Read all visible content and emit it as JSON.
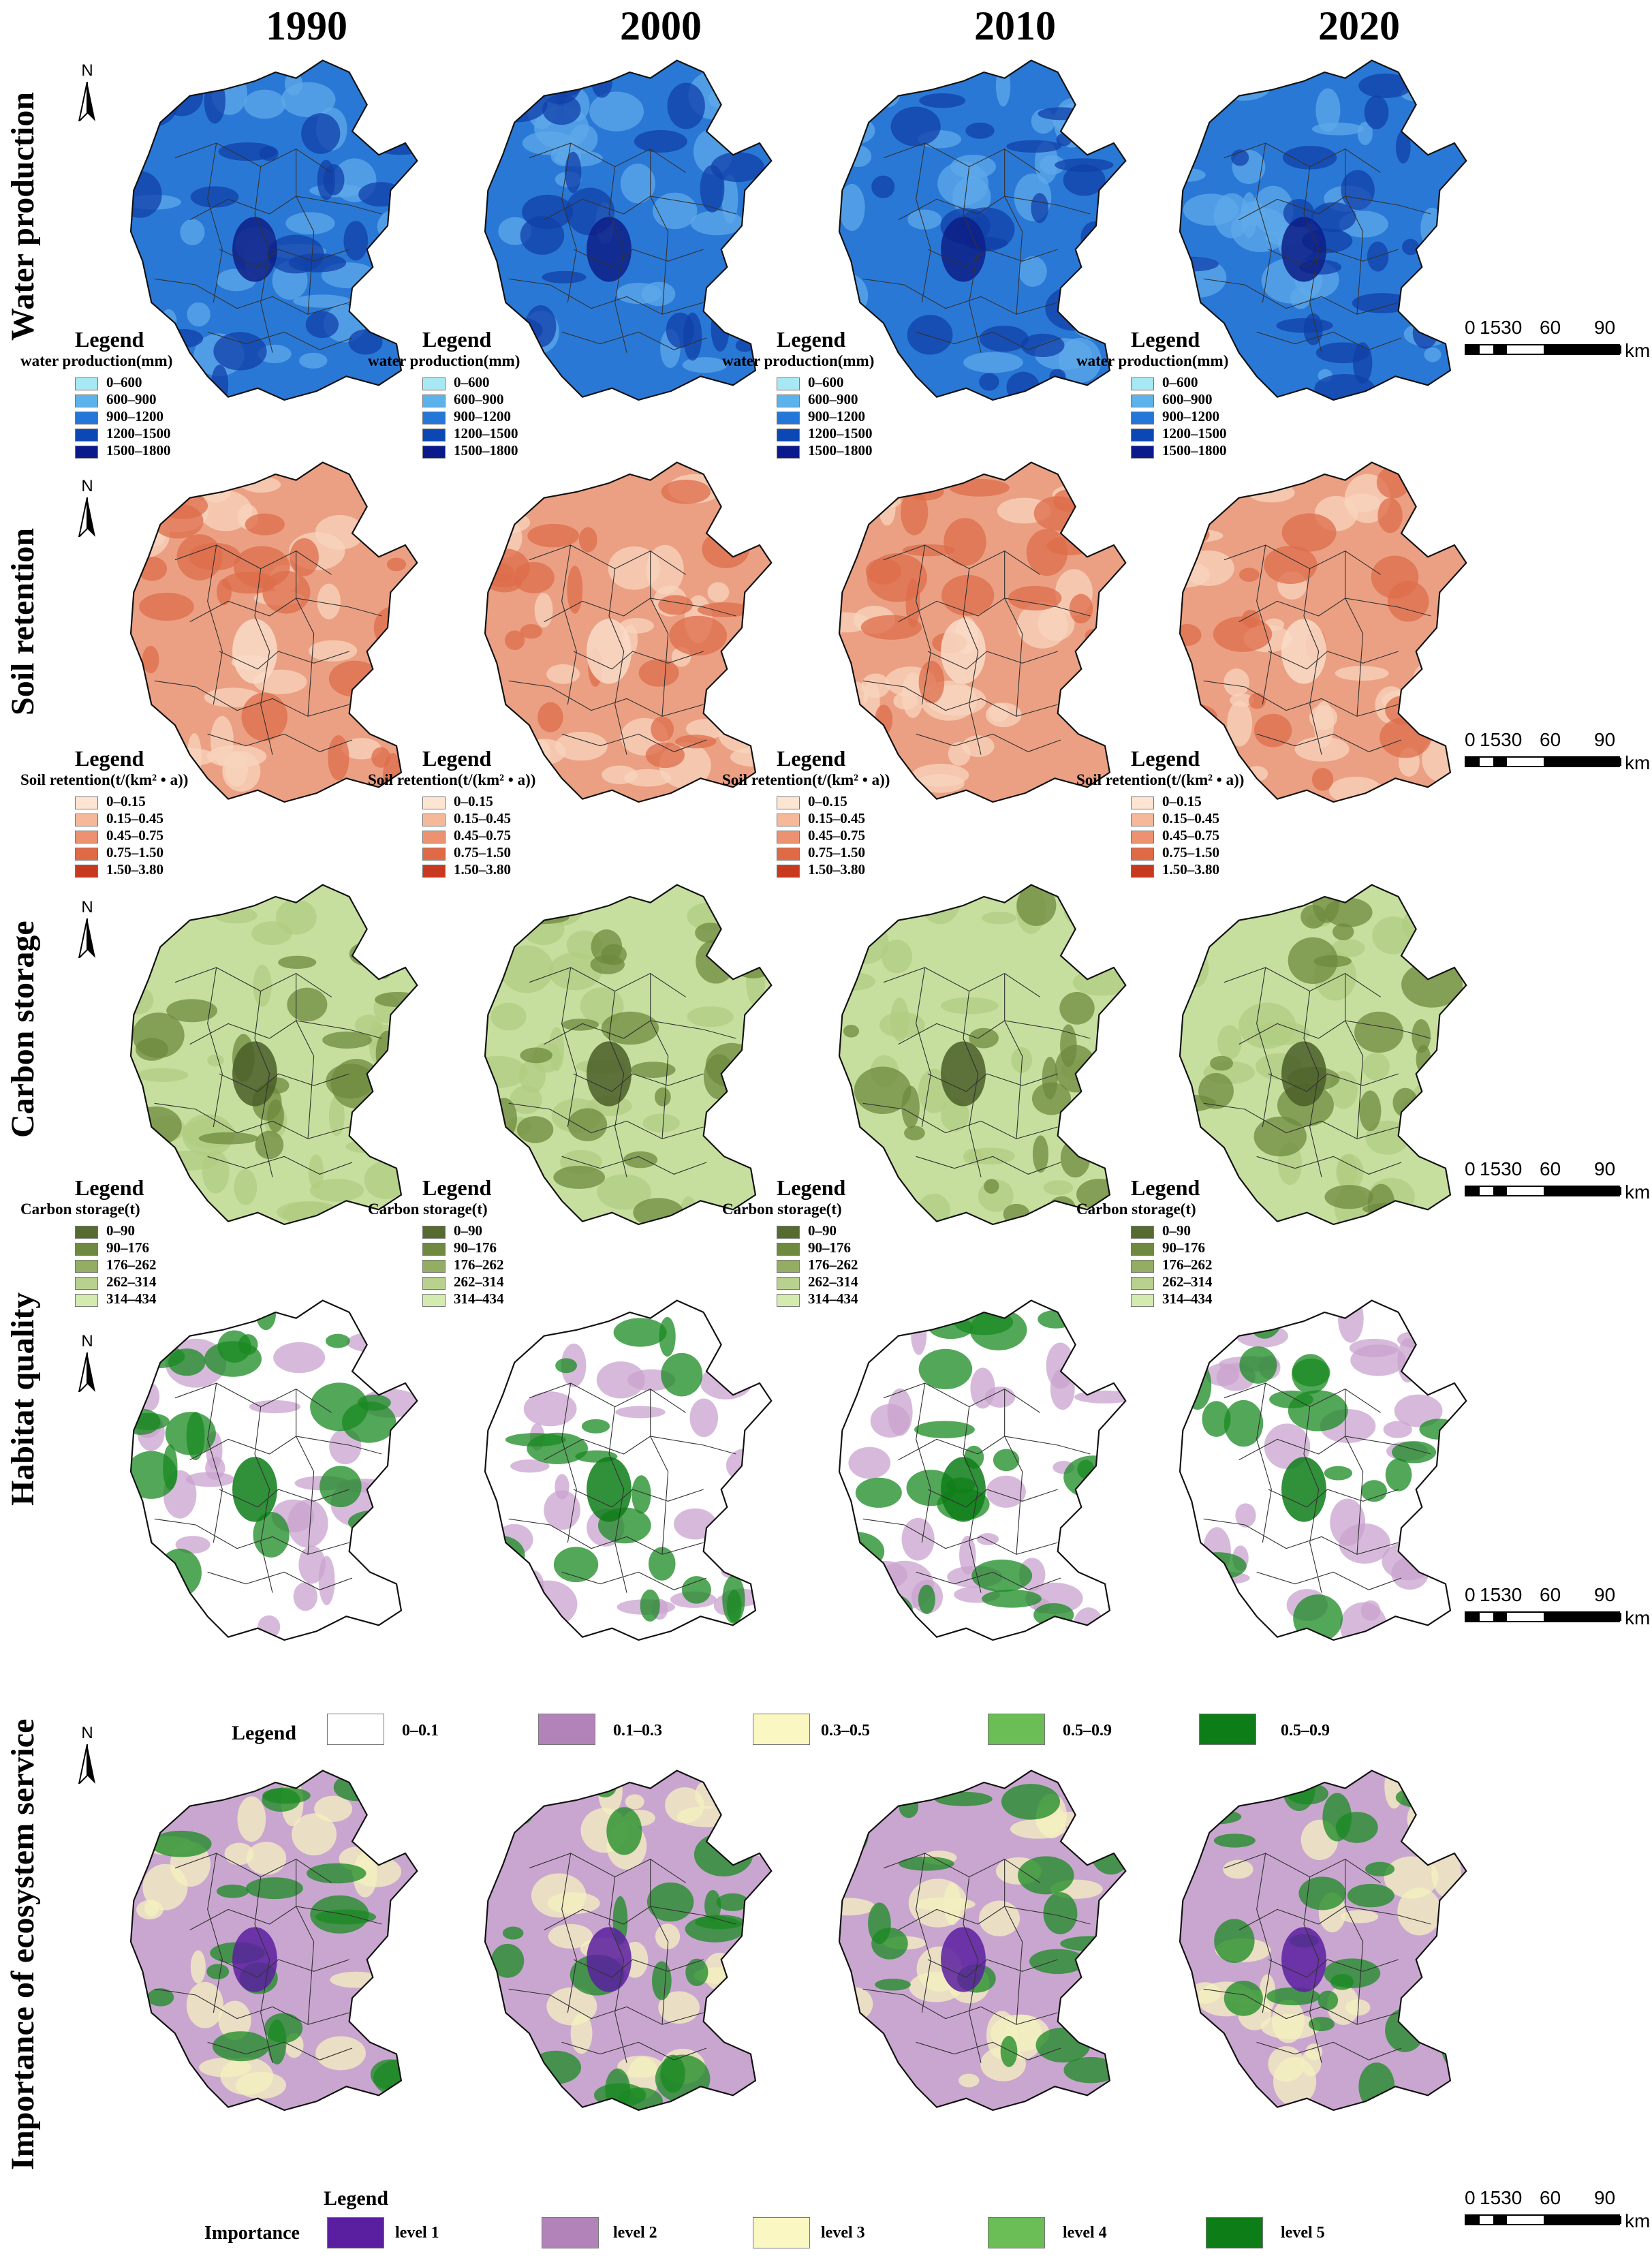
{
  "years": [
    "1990",
    "2000",
    "2010",
    "2020"
  ],
  "north_label": "N",
  "scalebar": {
    "labels": [
      "0",
      "1530",
      "60",
      "90"
    ],
    "unit": "km"
  },
  "rows": [
    {
      "title": "Water production",
      "legend_title": "Legend",
      "legend_sub": "water production(mm)",
      "classes": [
        {
          "label": "0–600",
          "color": "#a7e8f4"
        },
        {
          "label": "600–900",
          "color": "#5cb3ec"
        },
        {
          "label": "900–1200",
          "color": "#2277d8"
        },
        {
          "label": "1200–1500",
          "color": "#0b48b6"
        },
        {
          "label": "1500–1800",
          "color": "#0a1a8c"
        }
      ],
      "map_colors": {
        "base": "#2a78d6",
        "patch_light": "#5fa9ea",
        "patch_dark": "#1040a8",
        "core": "#0d1f86"
      }
    },
    {
      "title": "Soil retention",
      "legend_title": "Legend",
      "legend_sub": "Soil retention(t/(km² • a))",
      "classes": [
        {
          "label": "0–0.15",
          "color": "#fde5d2"
        },
        {
          "label": "0.15–0.45",
          "color": "#f5b99a"
        },
        {
          "label": "0.45–0.75",
          "color": "#ec9270"
        },
        {
          "label": "0.75–1.50",
          "color": "#e06a45"
        },
        {
          "label": "1.50–3.80",
          "color": "#c83a20"
        }
      ],
      "map_colors": {
        "base": "#eba083",
        "patch_light": "#f8d4bd",
        "patch_dark": "#dd6e4b",
        "core": "#f9dcc8"
      }
    },
    {
      "title": "Carbon storage",
      "legend_title": "Legend",
      "legend_sub": "Carbon storage(t)",
      "classes": [
        {
          "label": "0–90",
          "color": "#556b2f"
        },
        {
          "label": "90–176",
          "color": "#6f8a40"
        },
        {
          "label": "176–262",
          "color": "#93ae63"
        },
        {
          "label": "262–314",
          "color": "#b8d18e"
        },
        {
          "label": "314–434",
          "color": "#d4ebb0"
        }
      ],
      "map_colors": {
        "base": "#c6df9e",
        "patch_light": "#b0cc82",
        "patch_dark": "#6d8a3e",
        "core": "#4a5e28"
      }
    },
    {
      "title": "Habitat quality",
      "legend_title": "Legend",
      "classes": [
        {
          "label": "0–0.1",
          "color": "#ffffff"
        },
        {
          "label": "0.1–0.3",
          "color": "#b283b8"
        },
        {
          "label": "0.3–0.5",
          "color": "#fbf7c2"
        },
        {
          "label": "0.5–0.9",
          "color": "#6bbd55"
        },
        {
          "label": "0.5–0.9",
          "color": "#0d7d18"
        }
      ],
      "map_colors": {
        "base": "#ffffff",
        "patch_light": "#c9a3cf",
        "patch_dark": "#198a22",
        "core": "#0d7d18"
      }
    },
    {
      "title": "Importance of ecosystem service",
      "legend_title": "Legend",
      "legend_sub": "Importance",
      "classes": [
        {
          "label": "level 1",
          "color": "#5a1fa0"
        },
        {
          "label": "level 2",
          "color": "#b283b8"
        },
        {
          "label": "level 3",
          "color": "#fbf7c2"
        },
        {
          "label": "level 4",
          "color": "#6bbd55"
        },
        {
          "label": "level 5",
          "color": "#0d7d18"
        }
      ],
      "map_colors": {
        "base": "#c9a6cf",
        "patch_light": "#f4f0c0",
        "patch_dark": "#198a22",
        "core": "#5a1fa0"
      }
    }
  ]
}
